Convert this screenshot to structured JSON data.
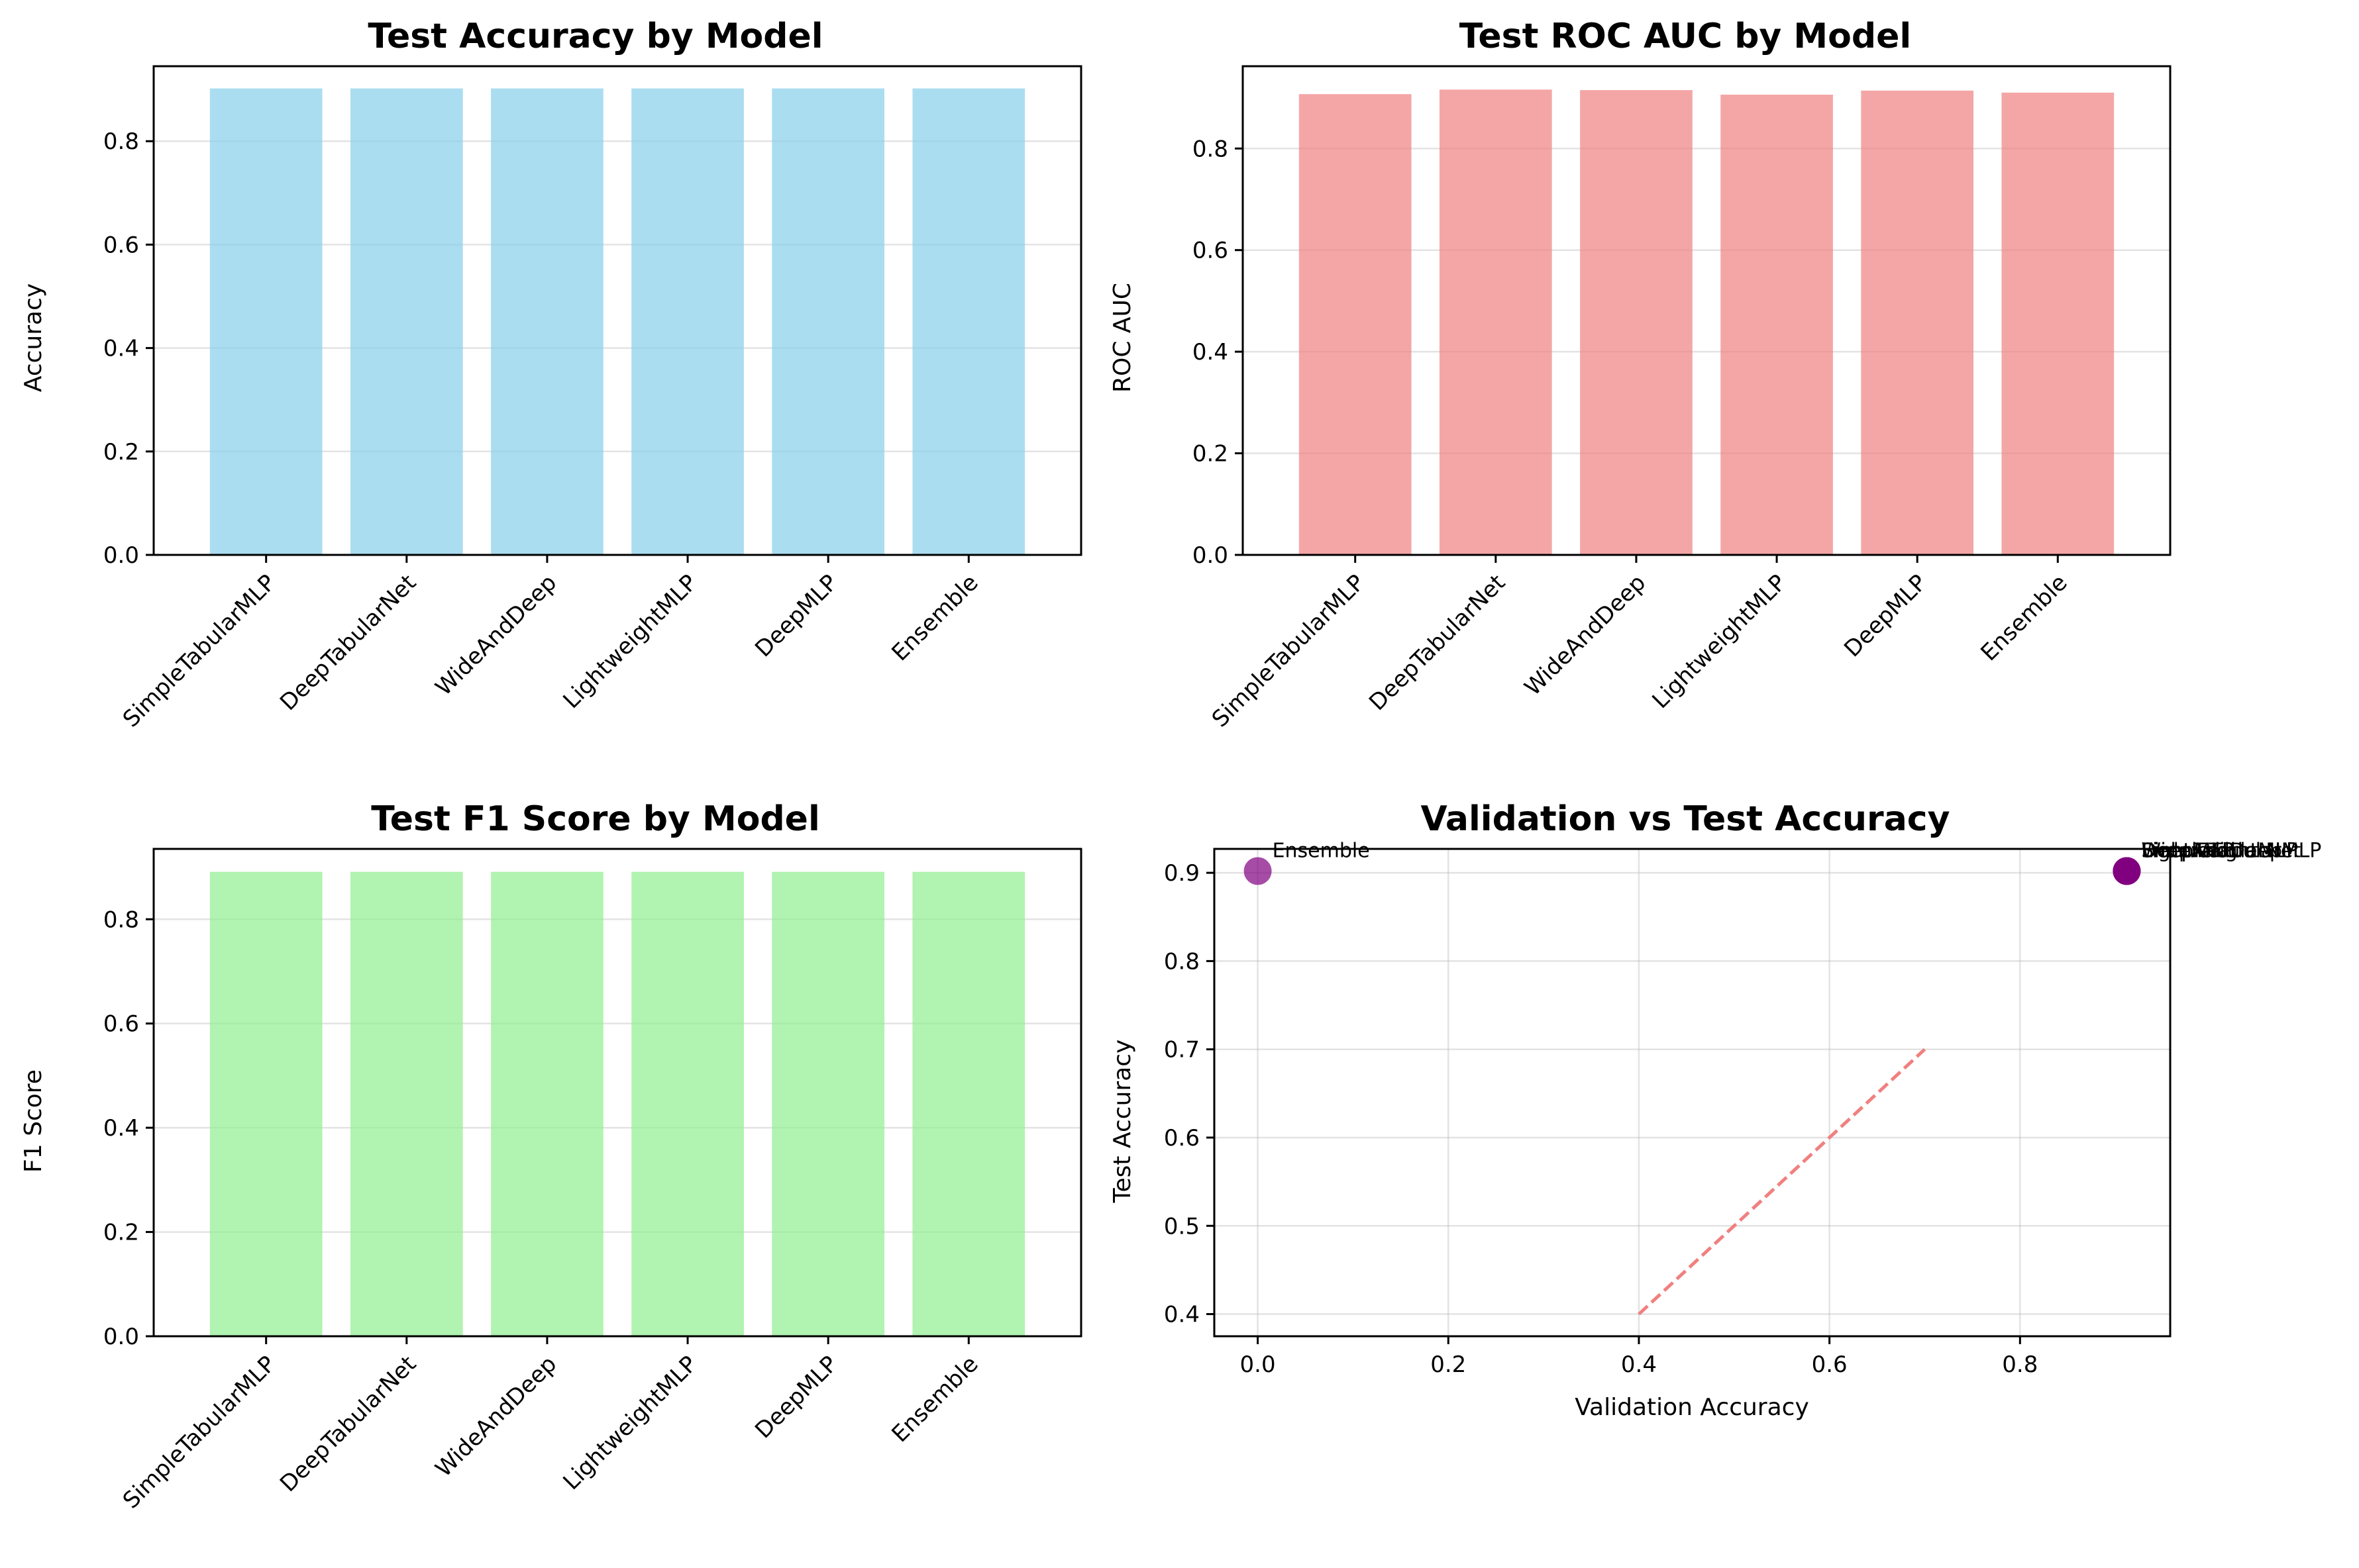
{
  "chart_data": [
    {
      "type": "bar",
      "title": "Test Accuracy by Model",
      "xlabel": "",
      "ylabel": "Accuracy",
      "categories": [
        "SimpleTabularMLP",
        "DeepTabularNet",
        "WideAndDeep",
        "LightweightMLP",
        "DeepMLP",
        "Ensemble"
      ],
      "values": [
        0.902,
        0.902,
        0.902,
        0.902,
        0.902,
        0.902
      ],
      "ylim": [
        0,
        0.945
      ],
      "yticks": [
        0.0,
        0.2,
        0.4,
        0.6,
        0.8
      ],
      "color": "#87ceeb",
      "grid": true
    },
    {
      "type": "bar",
      "title": "Test ROC AUC by Model",
      "xlabel": "",
      "ylabel": "ROC AUC",
      "categories": [
        "SimpleTabularMLP",
        "DeepTabularNet",
        "WideAndDeep",
        "LightweightMLP",
        "DeepMLP",
        "Ensemble"
      ],
      "values": [
        0.907,
        0.916,
        0.915,
        0.906,
        0.914,
        0.91
      ],
      "ylim": [
        0,
        0.962
      ],
      "yticks": [
        0.0,
        0.2,
        0.4,
        0.6,
        0.8
      ],
      "color": "#f08080",
      "grid": true
    },
    {
      "type": "bar",
      "title": "Test F1 Score by Model",
      "xlabel": "",
      "ylabel": "F1 Score",
      "categories": [
        "SimpleTabularMLP",
        "DeepTabularNet",
        "WideAndDeep",
        "LightweightMLP",
        "DeepMLP",
        "Ensemble"
      ],
      "values": [
        0.891,
        0.891,
        0.891,
        0.891,
        0.891,
        0.891
      ],
      "ylim": [
        0,
        0.935
      ],
      "yticks": [
        0.0,
        0.2,
        0.4,
        0.6,
        0.8
      ],
      "color": "#90ee90",
      "grid": true
    },
    {
      "type": "scatter",
      "title": "Validation vs Test Accuracy",
      "xlabel": "Validation Accuracy",
      "ylabel": "Test Accuracy",
      "points": [
        {
          "label": "SimpleTabularMLP",
          "x": 0.912,
          "y": 0.902
        },
        {
          "label": "DeepTabularNet",
          "x": 0.912,
          "y": 0.902
        },
        {
          "label": "WideAndDeep",
          "x": 0.912,
          "y": 0.902
        },
        {
          "label": "LightweightMLP",
          "x": 0.912,
          "y": 0.902
        },
        {
          "label": "DeepMLP",
          "x": 0.912,
          "y": 0.902
        },
        {
          "label": "Ensemble",
          "x": 0.0,
          "y": 0.902
        }
      ],
      "reference_line": {
        "x": [
          0.4,
          0.7
        ],
        "y": [
          0.4,
          0.7
        ],
        "color": "#f08080",
        "style": "dashed"
      },
      "xlim": [
        -0.0456,
        0.9576
      ],
      "ylim": [
        0.3749,
        0.9271
      ],
      "xticks": [
        0.0,
        0.2,
        0.4,
        0.6,
        0.8
      ],
      "yticks": [
        0.4,
        0.5,
        0.6,
        0.7,
        0.8,
        0.9
      ],
      "point_color": "#800080",
      "grid": true
    }
  ]
}
